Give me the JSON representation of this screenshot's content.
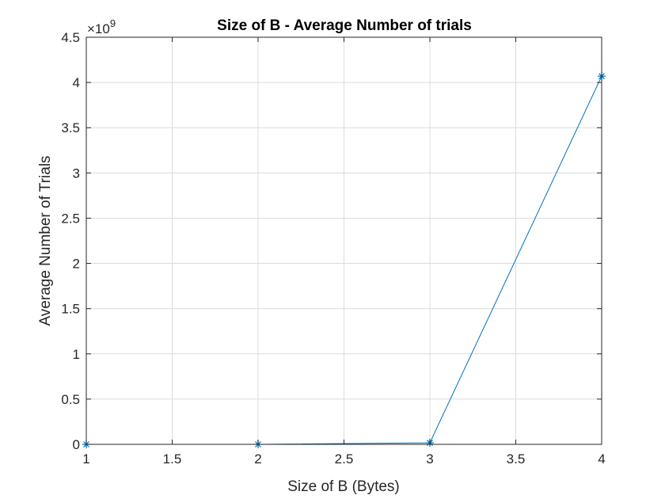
{
  "chart_data": {
    "type": "line",
    "title": "Size of B - Average Number of trials",
    "xlabel": "Size of B (Bytes)",
    "ylabel": "Average Number of Trials",
    "y_exponent": "×10",
    "y_exponent_power": "9",
    "xlim": [
      1,
      4
    ],
    "ylim": [
      0,
      4.5
    ],
    "xticks": [
      1,
      1.5,
      2,
      2.5,
      3,
      3.5,
      4
    ],
    "xtick_labels": [
      "1",
      "1.5",
      "2",
      "2.5",
      "3",
      "3.5",
      "4"
    ],
    "yticks": [
      0,
      0.5,
      1,
      1.5,
      2,
      2.5,
      3,
      3.5,
      4,
      4.5
    ],
    "ytick_labels": [
      "0",
      "0.5",
      "1",
      "1.5",
      "2",
      "2.5",
      "3",
      "3.5",
      "4",
      "4.5"
    ],
    "grid": true,
    "marker": "asterisk",
    "series": [
      {
        "x": [
          1,
          2,
          3,
          4
        ],
        "y": [
          3e-07,
          6.55e-05,
          0.0168,
          4.07
        ],
        "color": "#0072BD"
      }
    ]
  }
}
